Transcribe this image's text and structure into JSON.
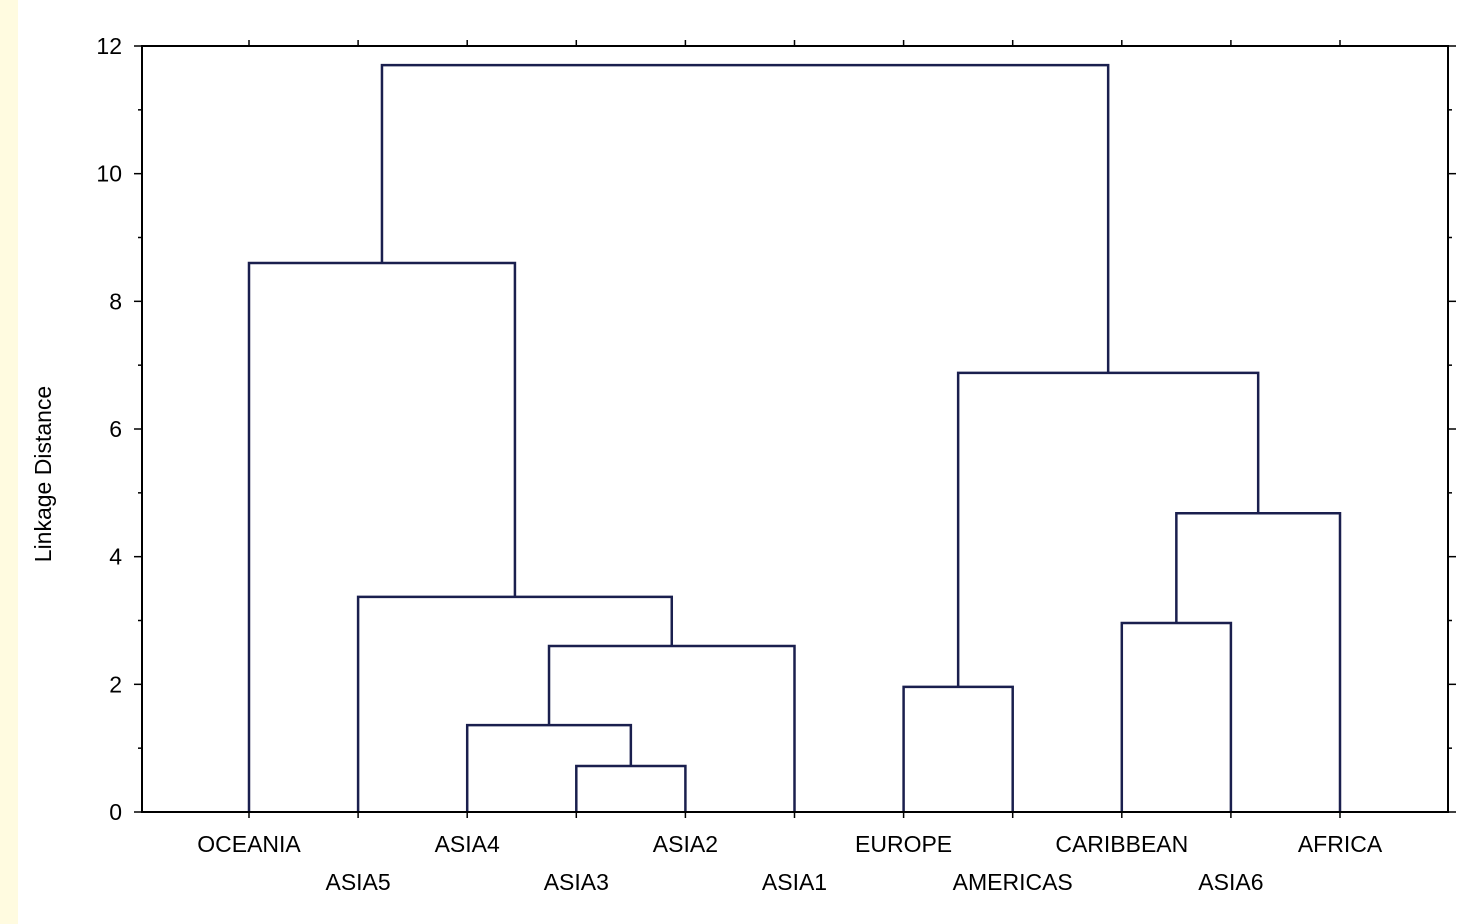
{
  "colors": {
    "background_tint": "#fffbe0",
    "plot_background": "#ffffff",
    "link_color": "#1a1f4e",
    "axis_color": "#000000"
  },
  "chart_data": {
    "type": "dendrogram",
    "title": "",
    "xlabel": "",
    "ylabel": "Linkage Distance",
    "ylim": [
      0,
      12
    ],
    "yticks": [
      "0",
      "2",
      "4",
      "6",
      "8",
      "10",
      "12"
    ],
    "minor_ticks": true,
    "grid": false,
    "leaves": [
      "OCEANIA",
      "ASIA5",
      "ASIA4",
      "ASIA3",
      "ASIA2",
      "ASIA1",
      "EUROPE",
      "AMERICAS",
      "CARIBBEAN",
      "ASIA6",
      "AFRICA"
    ],
    "merges": [
      {
        "left": "ASIA3",
        "right": "ASIA2",
        "height": 0.72
      },
      {
        "left": "ASIA4",
        "right": "ASIA3+ASIA2",
        "height": 1.36
      },
      {
        "left": "ASIA4+ASIA3+ASIA2",
        "right": "ASIA1",
        "height": 2.6
      },
      {
        "left": "ASIA5",
        "right": "ASIA4+ASIA3+ASIA2+ASIA1",
        "height": 3.37
      },
      {
        "left": "OCEANIA",
        "right": "ASIA5+ASIA4+ASIA3+ASIA2+ASIA1",
        "height": 8.6
      },
      {
        "left": "EUROPE",
        "right": "AMERICAS",
        "height": 1.96
      },
      {
        "left": "CARIBBEAN",
        "right": "ASIA6",
        "height": 2.96
      },
      {
        "left": "CARIBBEAN+ASIA6",
        "right": "AFRICA",
        "height": 4.68
      },
      {
        "left": "EUROPE+AMERICAS",
        "right": "CARIBBEAN+ASIA6+AFRICA",
        "height": 6.88
      },
      {
        "left": "OCEANIA+ASIA5+ASIA4+ASIA3+ASIA2+ASIA1",
        "right": "EUROPE+AMERICAS+CARIBBEAN+ASIA6+AFRICA",
        "height": 11.7
      }
    ]
  }
}
